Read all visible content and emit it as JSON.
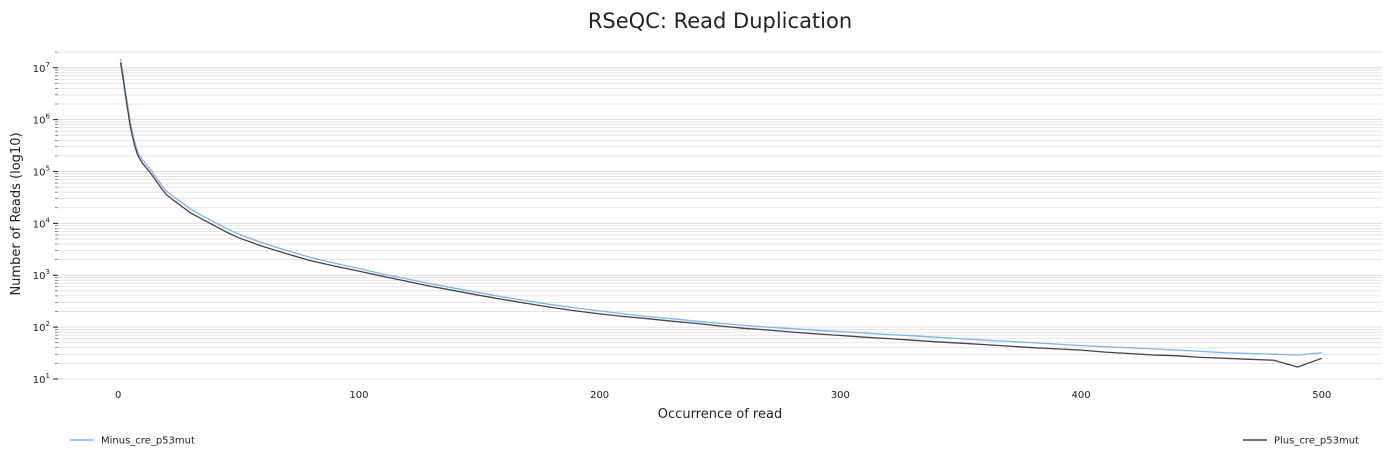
{
  "chart_data": {
    "type": "line",
    "title": "RSeQC: Read Duplication",
    "xlabel": "Occurrence of read",
    "ylabel": "Number of Reads (log10)",
    "y_scale": "log10",
    "xlim": [
      -25,
      525
    ],
    "ylim": [
      8,
      22000000
    ],
    "x_ticks": [
      0,
      100,
      200,
      300,
      400,
      500
    ],
    "y_ticks": [
      {
        "value": 10,
        "label": "10",
        "exp": "1"
      },
      {
        "value": 100,
        "label": "10",
        "exp": "2"
      },
      {
        "value": 1000,
        "label": "10",
        "exp": "3"
      },
      {
        "value": 10000,
        "label": "10",
        "exp": "4"
      },
      {
        "value": 100000,
        "label": "10",
        "exp": "5"
      },
      {
        "value": 1000000,
        "label": "10",
        "exp": "6"
      },
      {
        "value": 10000000,
        "label": "10",
        "exp": "7"
      }
    ],
    "grid": true,
    "legend_position": "bottom",
    "series": [
      {
        "name": "Minus_cre_p53mut",
        "color": "#7cb5ec",
        "x": [
          1,
          2,
          3,
          4,
          5,
          6,
          7,
          8,
          9,
          10,
          12,
          14,
          16,
          18,
          20,
          23,
          26,
          30,
          35,
          40,
          45,
          50,
          60,
          70,
          80,
          90,
          100,
          110,
          120,
          130,
          140,
          150,
          160,
          170,
          180,
          190,
          200,
          210,
          220,
          230,
          240,
          250,
          260,
          270,
          280,
          290,
          300,
          310,
          320,
          330,
          340,
          350,
          360,
          370,
          380,
          390,
          400,
          410,
          420,
          430,
          440,
          450,
          460,
          470,
          480,
          490,
          500
        ],
        "values": [
          15000000,
          7500000,
          3600000,
          1800000,
          900000,
          550000,
          360000,
          250000,
          200000,
          170000,
          130000,
          100000,
          75000,
          55000,
          42000,
          33000,
          26000,
          19000,
          14000,
          10500,
          8000,
          6200,
          4200,
          3000,
          2200,
          1700,
          1350,
          1050,
          850,
          680,
          560,
          460,
          380,
          320,
          270,
          235,
          205,
          180,
          160,
          145,
          130,
          118,
          108,
          100,
          93,
          87,
          82,
          77,
          72,
          68,
          64,
          60,
          56,
          53,
          50,
          47,
          44,
          42,
          40,
          38,
          36,
          34,
          32,
          31,
          30,
          29,
          32
        ]
      },
      {
        "name": "Plus_cre_p53mut",
        "color": "#434348",
        "x": [
          1,
          2,
          3,
          4,
          5,
          6,
          7,
          8,
          9,
          10,
          12,
          14,
          16,
          18,
          20,
          23,
          26,
          30,
          35,
          40,
          45,
          50,
          60,
          70,
          80,
          90,
          100,
          110,
          120,
          130,
          140,
          150,
          160,
          170,
          180,
          190,
          200,
          210,
          220,
          230,
          240,
          250,
          260,
          270,
          280,
          290,
          300,
          310,
          320,
          330,
          340,
          350,
          360,
          370,
          380,
          390,
          400,
          410,
          420,
          430,
          440,
          450,
          460,
          470,
          480,
          490,
          500
        ],
        "values": [
          12500000,
          6300000,
          3000000,
          1500000,
          760000,
          460000,
          300000,
          215000,
          175000,
          145000,
          112000,
          86000,
          64000,
          47000,
          36000,
          28000,
          22000,
          16000,
          12000,
          9000,
          6800,
          5300,
          3600,
          2600,
          1900,
          1500,
          1200,
          950,
          760,
          610,
          500,
          410,
          340,
          285,
          240,
          205,
          180,
          160,
          145,
          130,
          118,
          105,
          95,
          88,
          80,
          74,
          69,
          64,
          60,
          56,
          52,
          49,
          46,
          43,
          40,
          38,
          36,
          33,
          31,
          29,
          28,
          26,
          25,
          24,
          23,
          17,
          25
        ]
      }
    ]
  }
}
